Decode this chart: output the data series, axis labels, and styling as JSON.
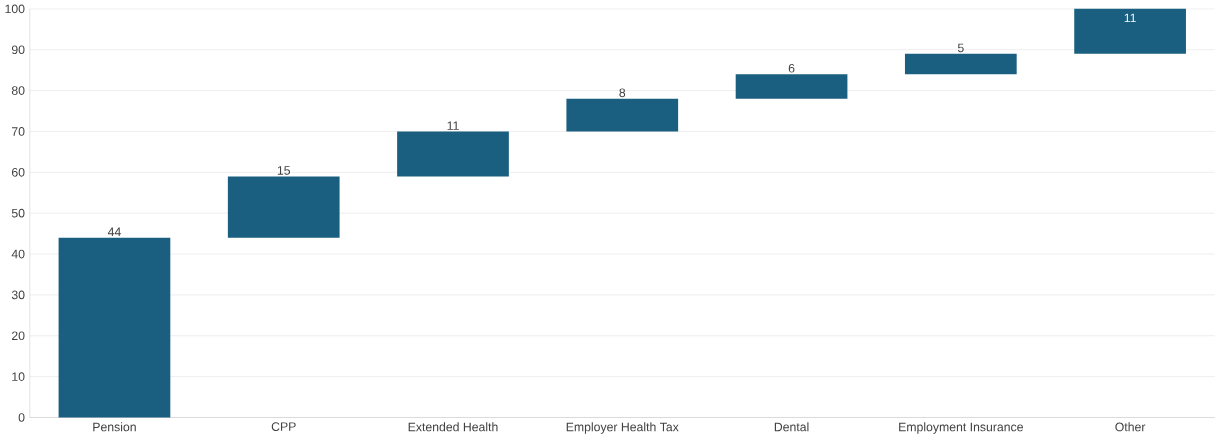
{
  "chart_data": {
    "type": "bar",
    "categories": [
      "Pension",
      "CPP",
      "Extended Health",
      "Employer Health Tax",
      "Dental",
      "Employment Insurance",
      "Other"
    ],
    "values": [
      44,
      15,
      11,
      8,
      6,
      5,
      11
    ],
    "base": [
      0,
      44,
      59,
      70,
      78,
      84,
      89
    ],
    "color": "#1a5f80",
    "ylim": [
      0,
      100
    ],
    "yticks": [
      0,
      10,
      20,
      30,
      40,
      50,
      60,
      70,
      80,
      90,
      100
    ],
    "grid": "y",
    "data_labels": true
  }
}
